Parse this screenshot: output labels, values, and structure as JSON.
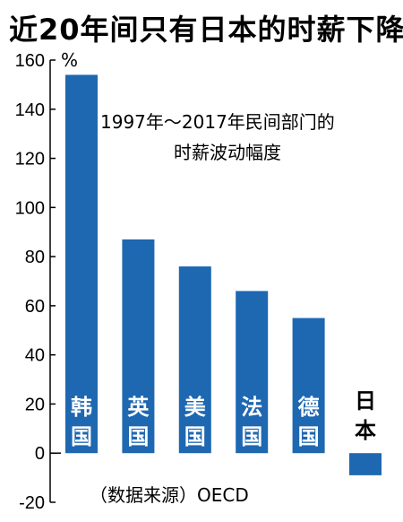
{
  "chart_data": {
    "type": "bar",
    "title": "近20年间只有日本的时薪下降",
    "annotation": [
      "1997年～2017年民间部门的",
      "时薪波动幅度"
    ],
    "unit": "%",
    "source": "（数据来源）OECD",
    "ylim": [
      -20,
      160
    ],
    "yticks": [
      -20,
      0,
      20,
      40,
      60,
      80,
      100,
      120,
      140,
      160
    ],
    "grid": false,
    "legend": "none",
    "categories": [
      "韩国",
      "英国",
      "美国",
      "法国",
      "德国",
      "日本"
    ],
    "values": [
      154,
      87,
      76,
      66,
      55,
      -9
    ],
    "colors": {
      "bar": "#1e67b1",
      "bar_label_on_bar": "#ffffff",
      "bar_label_off_bar": "#000000",
      "axis": "#000000"
    }
  }
}
